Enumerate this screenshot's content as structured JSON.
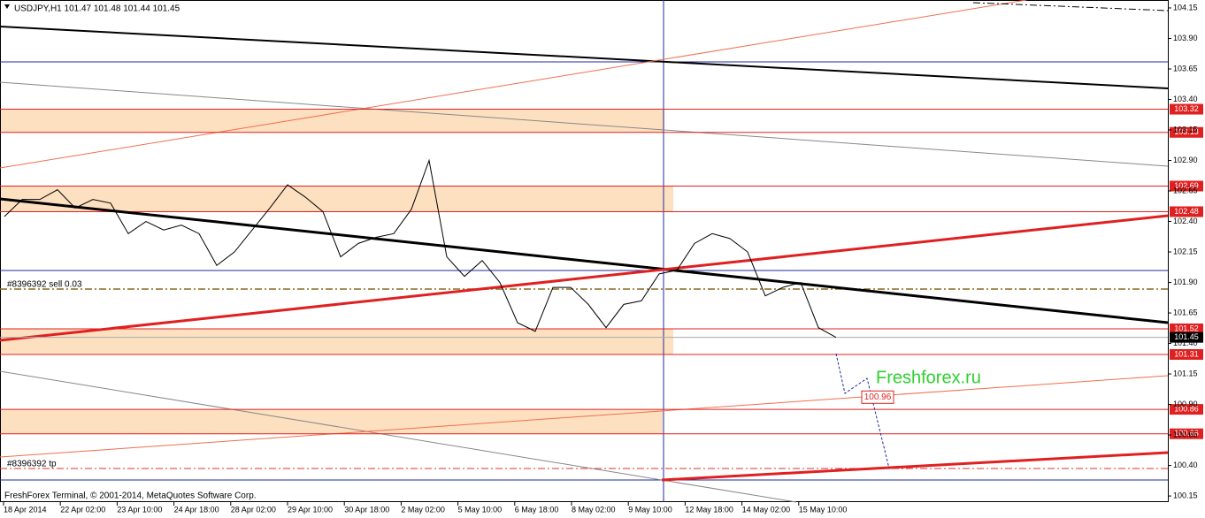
{
  "chart_data": {
    "type": "line",
    "title": "USDJPY,H1  101.47 101.48 101.44 101.45",
    "series": [
      {
        "name": "USDJPY",
        "color": "#000000",
        "values": [
          102.44,
          102.58,
          102.58,
          102.66,
          102.51,
          102.58,
          102.55,
          102.3,
          102.4,
          102.33,
          102.37,
          102.3,
          102.04,
          102.15,
          102.33,
          102.51,
          102.7,
          102.6,
          102.48,
          102.11,
          102.22,
          102.27,
          102.3,
          102.5,
          102.9,
          102.11,
          101.95,
          102.08,
          101.9,
          101.57,
          101.5,
          101.86,
          101.86,
          101.72,
          101.53,
          101.72,
          101.75,
          101.97,
          102.0,
          102.22,
          102.3,
          102.26,
          102.15,
          101.79,
          101.86,
          101.9,
          101.53,
          101.45
        ]
      }
    ],
    "xtick_labels": [
      "18 Apr 2014",
      "22 Apr 02:00",
      "23 Apr 10:00",
      "24 Apr 18:00",
      "28 Apr 02:00",
      "29 Apr 10:00",
      "30 Apr 18:00",
      "2 May 02:00",
      "5 May 10:00",
      "6 May 18:00",
      "8 May 02:00",
      "9 May 10:00",
      "12 May 18:00",
      "14 May 02:00",
      "15 May 10:00"
    ],
    "ylim": [
      100.1,
      104.215
    ],
    "yticks": [
      104.15,
      {
        "value": 103.9,
        "label": "103.90"
      },
      103.65,
      {
        "value": 103.4,
        "label": "103.40"
      },
      103.15,
      {
        "value": 102.9,
        "label": "102.90"
      },
      102.65,
      {
        "value": 102.4,
        "label": "102.40"
      },
      102.15,
      {
        "value": 101.9,
        "label": "101.90"
      },
      101.65,
      {
        "value": 101.4,
        "label": "101.40"
      },
      101.15,
      {
        "value": 100.9,
        "label": "100.90"
      },
      100.65,
      {
        "value": 100.4,
        "label": "100.40"
      },
      100.15
    ],
    "levels": [
      103.32,
      103.13,
      102.69,
      102.48,
      101.52,
      101.31,
      100.86,
      100.66
    ],
    "current_price": 101.45,
    "target": 100.96,
    "order_label": "#8396392 sell 0.03",
    "tp_label": "#8396392 tp",
    "watermark": "Freshforex.ru",
    "footer": "FreshForex Terminal, © 2001-2014, MetaQuotes Software Corp."
  }
}
